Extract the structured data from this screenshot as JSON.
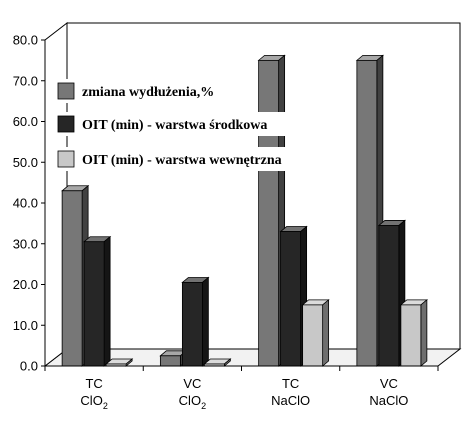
{
  "chart_data": {
    "type": "bar",
    "categories": [
      {
        "line1": "TC",
        "line2": "ClO",
        "sub": "2"
      },
      {
        "line1": "VC",
        "line2": "ClO",
        "sub": "2"
      },
      {
        "line1": "TC",
        "line2": "NaClO",
        "sub": ""
      },
      {
        "line1": "VC",
        "line2": "NaClO",
        "sub": ""
      }
    ],
    "series": [
      {
        "name": "zmiana wydłużenia,%",
        "color": "#777777",
        "values": [
          43,
          2.5,
          75,
          75
        ]
      },
      {
        "name": "OIT (min) - warstwa środkowa",
        "color": "#262626",
        "values": [
          30.5,
          20.5,
          33,
          34.5
        ]
      },
      {
        "name": "OIT (min) - warstwa wewnętrzna",
        "color": "#c8c8c8",
        "values": [
          0.5,
          0.5,
          15,
          15
        ]
      }
    ],
    "y_ticks": [
      "0.0",
      "10.0",
      "20.0",
      "30.0",
      "40.0",
      "50.0",
      "60.0",
      "70.0",
      "80.0"
    ],
    "ylim": [
      0,
      80
    ],
    "grid": false,
    "legend_position": "top-left",
    "three_d": true
  }
}
